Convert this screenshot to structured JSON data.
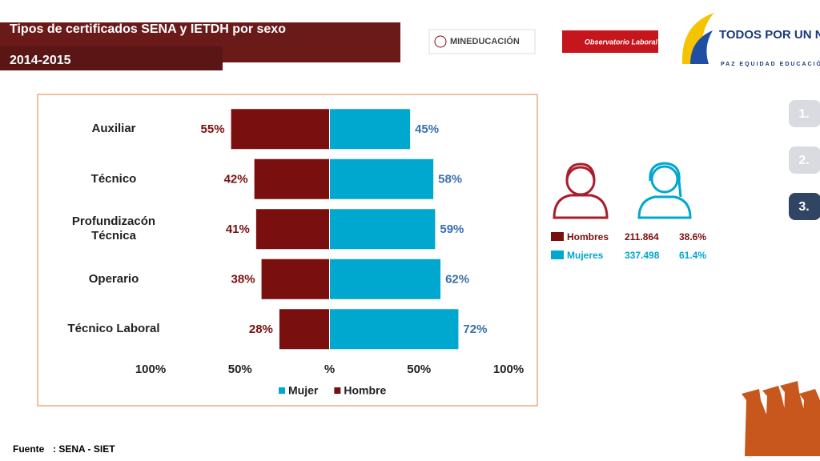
{
  "header": {
    "title": "Tipos de certificados SENA y IETDH por sexo",
    "period": "2014-2015"
  },
  "logos": {
    "ministry": "MINEDUCACIÓN",
    "observatory": "Observatorio Laboral",
    "slogan": "TODOS POR UN NUEVO PAÍS",
    "motto": "PAZ EQUIDAD EDUCACIÓN"
  },
  "nav": [
    "1.",
    "2.",
    "3."
  ],
  "summary": {
    "rows": [
      [
        "Hombres",
        "211.864",
        "38.6%"
      ],
      [
        "Mujeres",
        "337.498",
        "61.4%"
      ]
    ]
  },
  "source": {
    "label": "Fuente",
    "text": ": SENA - SIET"
  },
  "chart_data": {
    "type": "diverging-bar",
    "categories": [
      "Auxiliar",
      "Técnico",
      "Profundizacón Técnica",
      "Operario",
      "Técnico Laboral"
    ],
    "series": [
      {
        "name": "Mujer",
        "color": "#00a7cf",
        "side": "right",
        "values": [
          45,
          58,
          59,
          62,
          72
        ],
        "value_labels": [
          "45%",
          "58%",
          "59%",
          "62%",
          "72%"
        ],
        "label_color": "#3a6fb0"
      },
      {
        "name": "Hombre",
        "color": "#7a0f0f",
        "side": "left",
        "values": [
          55,
          42,
          41,
          38,
          28
        ],
        "value_labels": [
          "55%",
          "42%",
          "41%",
          "38%",
          "28%"
        ],
        "label_color": "#7a0f0f"
      }
    ],
    "xlim": [
      -100,
      100
    ],
    "xticks": [
      {
        "value": -100,
        "label": "100%"
      },
      {
        "value": -50,
        "label": "50%"
      },
      {
        "value": 0,
        "label": "%"
      },
      {
        "value": 50,
        "label": "50%"
      },
      {
        "value": 100,
        "label": "100%"
      }
    ],
    "legend": "bottom"
  }
}
